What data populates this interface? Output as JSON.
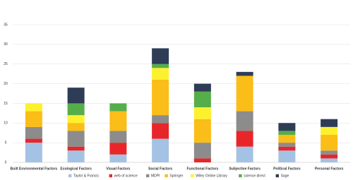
{
  "chart_data": {
    "type": "stacked-bar",
    "categories": [
      "Built Environmental Factors",
      "Ecological Factors",
      "Visual Factors",
      "Social Factors",
      "Functional Factors",
      "Subjective Factors",
      "Political Factors",
      "Personal Factors"
    ],
    "series": [
      {
        "name": "Taylor & Francis",
        "color": "#a4c2e4",
        "values": [
          5,
          3,
          2,
          6,
          0,
          4,
          3,
          1
        ]
      },
      {
        "name": "web of science",
        "color": "#e8262a",
        "values": [
          1,
          1,
          3,
          4,
          1,
          4,
          1,
          1
        ]
      },
      {
        "name": "MDPI",
        "color": "#8c8c8c",
        "values": [
          3,
          4,
          3,
          2,
          4,
          5,
          1,
          1
        ]
      },
      {
        "name": "Springer",
        "color": "#fbbd17",
        "values": [
          4,
          2,
          5,
          9,
          6,
          9,
          2,
          4
        ]
      },
      {
        "name": "Wiley Online Library",
        "color": "#fdf12e",
        "values": [
          2,
          2,
          0,
          3,
          3,
          0,
          0,
          2
        ]
      },
      {
        "name": "science direct",
        "color": "#56ae4a",
        "values": [
          0,
          3,
          2,
          1,
          4,
          0,
          1,
          0
        ]
      },
      {
        "name": "Sage",
        "color": "#2f3c56",
        "values": [
          0,
          4,
          0,
          4,
          2,
          1,
          2,
          2
        ]
      }
    ],
    "ylim": [
      0,
      35
    ],
    "yticks": [
      0,
      5,
      10,
      15,
      20,
      25,
      30,
      35
    ],
    "grid": true,
    "legend": "bottom"
  }
}
